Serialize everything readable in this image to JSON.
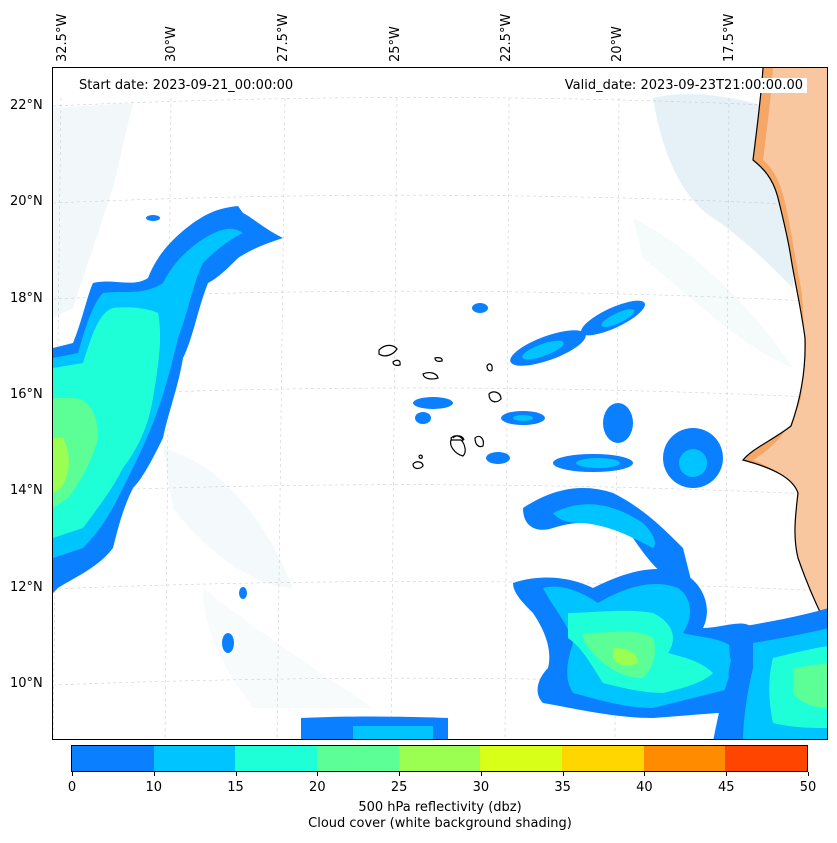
{
  "map": {
    "lon_labels": [
      "32.5°W",
      "30°W",
      "27.5°W",
      "25°W",
      "22.5°W",
      "20°W",
      "17.5°W"
    ],
    "lat_labels": [
      "22°N",
      "20°N",
      "18°N",
      "16°N",
      "14°N",
      "12°N",
      "10°N"
    ],
    "start_date": "Start date: 2023-09-21_00:00:00",
    "valid_date": "Valid_date: 2023-09-23T21:00:00.00"
  },
  "colorbar": {
    "ticks": [
      "0",
      "10",
      "15",
      "20",
      "25",
      "30",
      "35",
      "40",
      "45",
      "50"
    ],
    "colors": [
      "#0a7fff",
      "#00c4ff",
      "#1fffd7",
      "#5cff96",
      "#9aff50",
      "#d8ff18",
      "#ffd600",
      "#ff8c00",
      "#ff4500"
    ],
    "label_line1": "500 hPa reflectivity (dbz)",
    "label_line2": "Cloud cover (white background shading)"
  },
  "colors": {
    "land": "#f4a766",
    "cloud": "#cfe6ee",
    "coast": "#000000"
  }
}
